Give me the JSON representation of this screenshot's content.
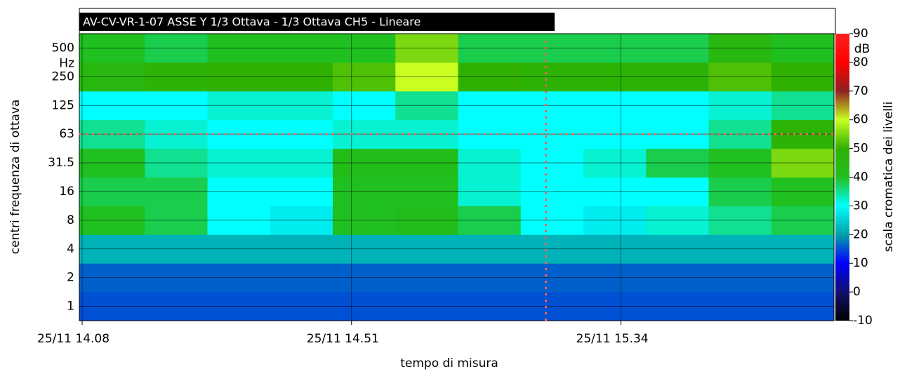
{
  "chart_data": {
    "type": "heatmap",
    "title": "AV-CV-VR-1-07 ASSE Y 1/3 Ottava - 1/3 Ottava CH5 - Lineare",
    "x_label": "tempo di misura",
    "y_label": "centri frequenza di ottava",
    "y_unit": "Hz",
    "rows": [
      "1",
      "2",
      "4",
      "8",
      "16",
      "31.5",
      "63",
      "125",
      "250",
      "500"
    ],
    "x": [
      848,
      858,
      868,
      878,
      888,
      898,
      908,
      918,
      928,
      938,
      948,
      958
    ],
    "x_step": 10,
    "xlim": [
      848,
      968
    ],
    "xticks": [
      {
        "value": 848,
        "label": "25/11 14.08"
      },
      {
        "value": 891,
        "label": "25/11 14.51"
      },
      {
        "value": 934,
        "label": "25/11 15.34"
      }
    ],
    "z": [
      [
        15,
        15,
        15,
        15,
        15,
        15,
        15,
        15,
        15,
        15,
        15,
        15
      ],
      [
        16,
        16,
        16,
        16,
        16,
        16,
        16,
        16,
        16,
        16,
        16,
        16
      ],
      [
        22,
        22,
        22,
        22,
        22,
        22,
        22,
        22,
        22,
        22,
        22,
        22
      ],
      [
        40,
        38,
        30,
        28,
        40,
        42,
        38,
        30,
        28,
        32,
        35,
        38
      ],
      [
        38,
        38,
        30,
        30,
        40,
        40,
        32,
        30,
        30,
        30,
        38,
        40
      ],
      [
        40,
        35,
        32,
        32,
        42,
        42,
        32,
        30,
        32,
        38,
        40,
        55
      ],
      [
        35,
        32,
        30,
        30,
        32,
        32,
        30,
        30,
        30,
        30,
        35,
        48
      ],
      [
        30,
        30,
        32,
        32,
        30,
        35,
        30,
        30,
        30,
        30,
        32,
        35
      ],
      [
        45,
        48,
        50,
        50,
        52,
        60,
        50,
        48,
        48,
        48,
        52,
        50
      ],
      [
        40,
        38,
        40,
        40,
        40,
        55,
        38,
        38,
        38,
        38,
        45,
        40
      ]
    ],
    "cursor_x": 922,
    "cursor_row": "63",
    "cursor_color": "#ff6060",
    "colorbar_label": "scala cromatica dei livelli",
    "colorbar_unit": "dB",
    "clim": [
      -10,
      90
    ],
    "cticks": [
      -10,
      0,
      10,
      20,
      30,
      40,
      50,
      60,
      70,
      80,
      90
    ],
    "colors": [
      "#000000",
      "#101070",
      "#0000ff",
      "#00a0a8",
      "#00ffff",
      "#20c020",
      "#30b000",
      "#c8ff20",
      "#902020",
      "#ff0000",
      "#ff2020"
    ],
    "grid": true
  }
}
